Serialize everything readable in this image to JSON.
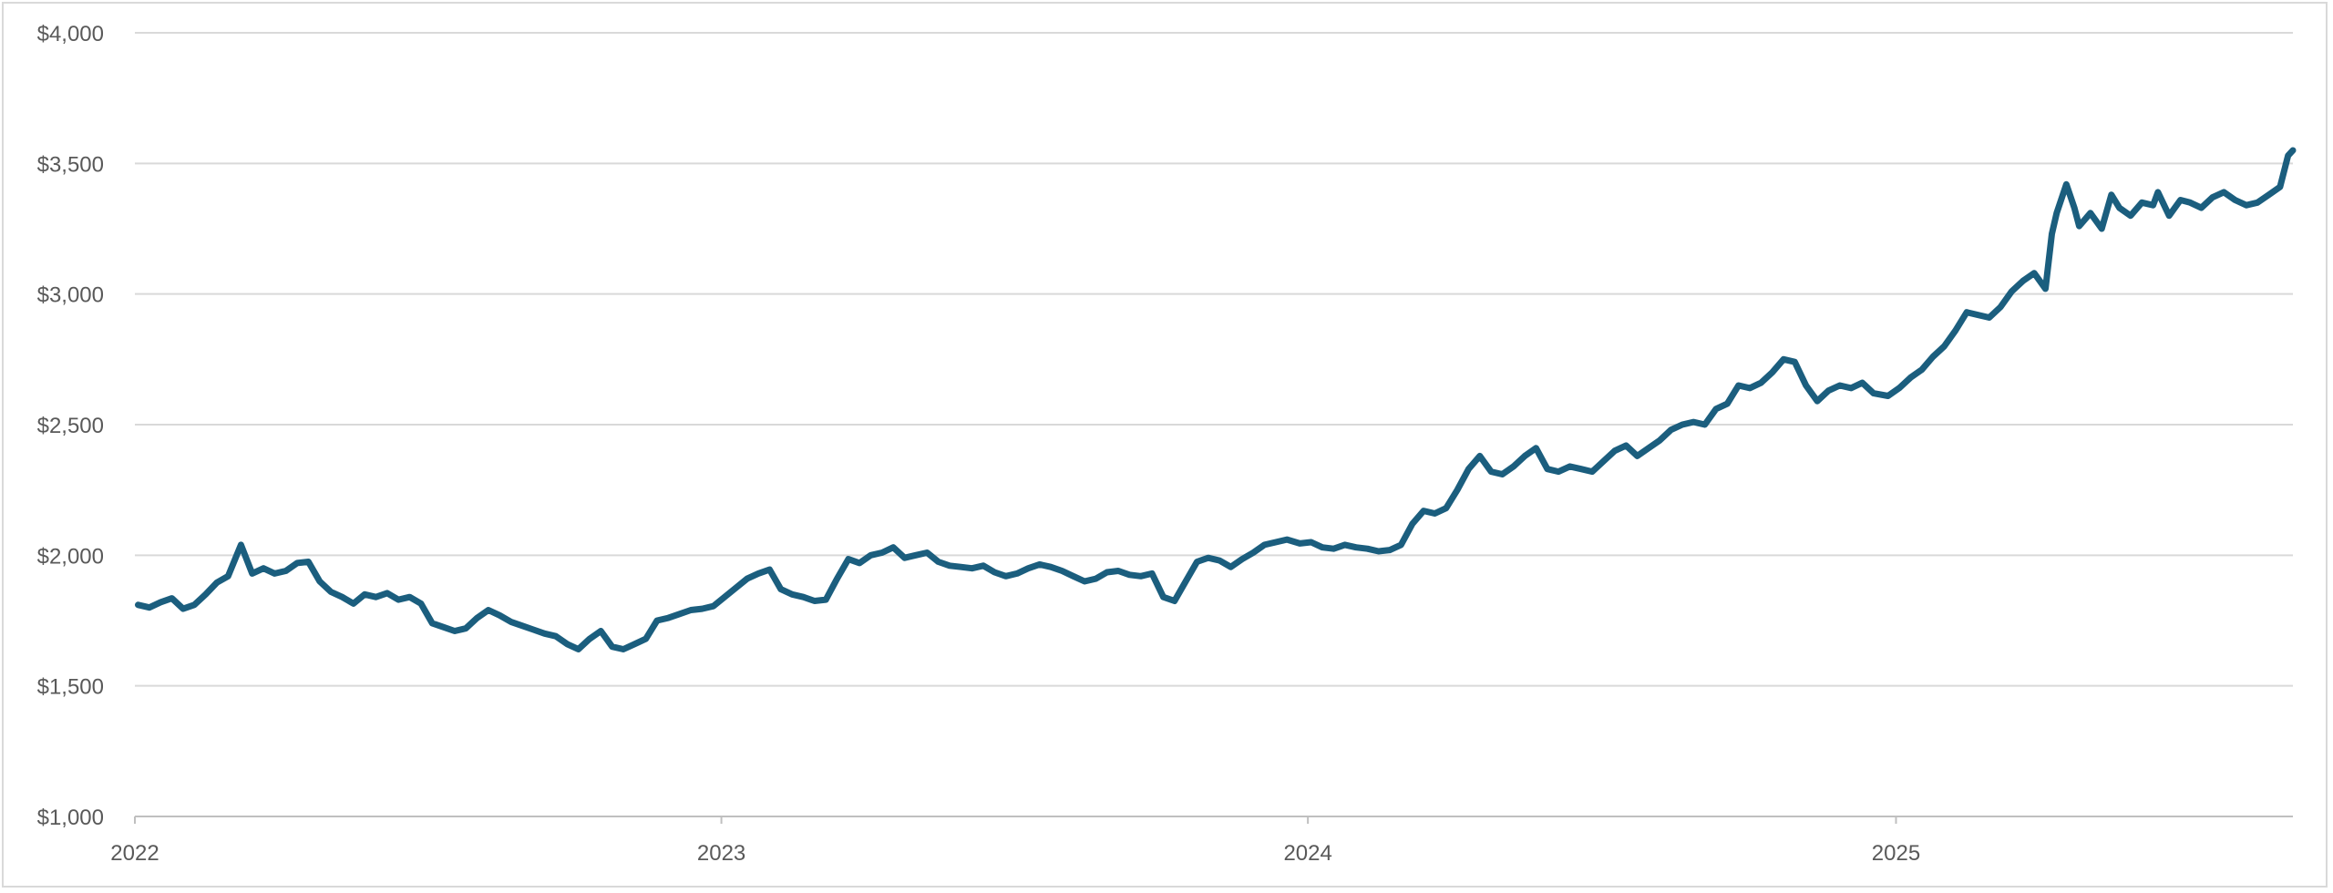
{
  "chart_data": {
    "type": "line",
    "title": "",
    "xlabel": "",
    "ylabel": "",
    "ylim": [
      1000,
      4000
    ],
    "xlim": [
      "2022-01-01",
      "2025-09-05"
    ],
    "grid": "horizontal",
    "legend": "none",
    "y_ticks": [
      1000,
      1500,
      2000,
      2500,
      3000,
      3500,
      4000
    ],
    "y_tick_labels": [
      "$1,000",
      "$1,500",
      "$2,000",
      "$2,500",
      "$3,000",
      "$3,500",
      "$4,000"
    ],
    "x_ticks": [
      "2022-01-01",
      "2023-01-01",
      "2024-01-01",
      "2025-01-01"
    ],
    "x_tick_labels": [
      "2022",
      "2023",
      "2024",
      "2025"
    ],
    "colors": {
      "series": "#1b5e7e",
      "grid": "#d9d9d9",
      "text": "#595959"
    },
    "series": [
      {
        "x": [
          "2022-01-03",
          "2022-01-10",
          "2022-01-17",
          "2022-01-24",
          "2022-01-31",
          "2022-02-07",
          "2022-02-14",
          "2022-02-21",
          "2022-02-28",
          "2022-03-08",
          "2022-03-15",
          "2022-03-22",
          "2022-03-29",
          "2022-04-05",
          "2022-04-12",
          "2022-04-19",
          "2022-04-26",
          "2022-05-03",
          "2022-05-10",
          "2022-05-17",
          "2022-05-24",
          "2022-05-31",
          "2022-06-07",
          "2022-06-14",
          "2022-06-21",
          "2022-06-28",
          "2022-07-05",
          "2022-07-12",
          "2022-07-19",
          "2022-07-26",
          "2022-08-02",
          "2022-08-09",
          "2022-08-16",
          "2022-08-23",
          "2022-08-30",
          "2022-09-06",
          "2022-09-13",
          "2022-09-20",
          "2022-09-27",
          "2022-10-04",
          "2022-10-11",
          "2022-10-18",
          "2022-10-25",
          "2022-11-01",
          "2022-11-08",
          "2022-11-15",
          "2022-11-22",
          "2022-11-29",
          "2022-12-06",
          "2022-12-13",
          "2022-12-20",
          "2022-12-27",
          "2023-01-03",
          "2023-01-10",
          "2023-01-17",
          "2023-01-24",
          "2023-01-31",
          "2023-02-07",
          "2023-02-14",
          "2023-02-21",
          "2023-02-28",
          "2023-03-07",
          "2023-03-14",
          "2023-03-21",
          "2023-03-28",
          "2023-04-04",
          "2023-04-11",
          "2023-04-18",
          "2023-04-25",
          "2023-05-02",
          "2023-05-09",
          "2023-05-16",
          "2023-05-23",
          "2023-05-30",
          "2023-06-06",
          "2023-06-13",
          "2023-06-20",
          "2023-06-27",
          "2023-07-04",
          "2023-07-11",
          "2023-07-18",
          "2023-07-25",
          "2023-08-01",
          "2023-08-08",
          "2023-08-15",
          "2023-08-22",
          "2023-08-29",
          "2023-09-05",
          "2023-09-12",
          "2023-09-19",
          "2023-09-26",
          "2023-10-03",
          "2023-10-10",
          "2023-10-17",
          "2023-10-24",
          "2023-10-31",
          "2023-11-07",
          "2023-11-14",
          "2023-11-21",
          "2023-11-28",
          "2023-12-05",
          "2023-12-12",
          "2023-12-19",
          "2023-12-27",
          "2024-01-03",
          "2024-01-10",
          "2024-01-17",
          "2024-01-24",
          "2024-01-31",
          "2024-02-07",
          "2024-02-14",
          "2024-02-21",
          "2024-02-28",
          "2024-03-06",
          "2024-03-13",
          "2024-03-20",
          "2024-03-27",
          "2024-04-03",
          "2024-04-10",
          "2024-04-17",
          "2024-04-24",
          "2024-05-01",
          "2024-05-08",
          "2024-05-15",
          "2024-05-22",
          "2024-05-29",
          "2024-06-05",
          "2024-06-12",
          "2024-06-19",
          "2024-06-26",
          "2024-07-03",
          "2024-07-10",
          "2024-07-17",
          "2024-07-24",
          "2024-07-31",
          "2024-08-07",
          "2024-08-14",
          "2024-08-21",
          "2024-08-28",
          "2024-09-04",
          "2024-09-11",
          "2024-09-18",
          "2024-09-25",
          "2024-10-02",
          "2024-10-09",
          "2024-10-16",
          "2024-10-23",
          "2024-10-30",
          "2024-11-06",
          "2024-11-13",
          "2024-11-20",
          "2024-11-27",
          "2024-12-04",
          "2024-12-11",
          "2024-12-18",
          "2024-12-27",
          "2025-01-03",
          "2025-01-10",
          "2025-01-17",
          "2025-01-24",
          "2025-01-31",
          "2025-02-07",
          "2025-02-14",
          "2025-02-21",
          "2025-02-28",
          "2025-03-07",
          "2025-03-14",
          "2025-03-21",
          "2025-03-28",
          "2025-04-04",
          "2025-04-08",
          "2025-04-11",
          "2025-04-17",
          "2025-04-22",
          "2025-04-25",
          "2025-05-02",
          "2025-05-09",
          "2025-05-15",
          "2025-05-20",
          "2025-05-27",
          "2025-06-03",
          "2025-06-10",
          "2025-06-13",
          "2025-06-20",
          "2025-06-27",
          "2025-07-03",
          "2025-07-10",
          "2025-07-17",
          "2025-07-24",
          "2025-07-31",
          "2025-08-07",
          "2025-08-14",
          "2025-08-21",
          "2025-08-28",
          "2025-09-02",
          "2025-09-05"
        ],
        "values": [
          1810,
          1800,
          1820,
          1835,
          1795,
          1810,
          1850,
          1895,
          1920,
          2040,
          1930,
          1950,
          1930,
          1940,
          1970,
          1975,
          1900,
          1860,
          1840,
          1815,
          1850,
          1840,
          1855,
          1830,
          1840,
          1815,
          1740,
          1725,
          1710,
          1720,
          1760,
          1790,
          1770,
          1745,
          1730,
          1715,
          1700,
          1690,
          1660,
          1640,
          1680,
          1710,
          1650,
          1640,
          1660,
          1680,
          1750,
          1760,
          1775,
          1790,
          1795,
          1805,
          1840,
          1875,
          1910,
          1930,
          1945,
          1870,
          1850,
          1840,
          1825,
          1830,
          1910,
          1985,
          1970,
          2000,
          2010,
          2030,
          1990,
          2000,
          2010,
          1975,
          1960,
          1955,
          1950,
          1960,
          1935,
          1920,
          1930,
          1950,
          1965,
          1955,
          1940,
          1920,
          1900,
          1910,
          1935,
          1940,
          1925,
          1920,
          1930,
          1840,
          1825,
          1900,
          1975,
          1990,
          1980,
          1955,
          1985,
          2010,
          2040,
          2050,
          2060,
          2045,
          2050,
          2030,
          2025,
          2040,
          2030,
          2025,
          2015,
          2020,
          2040,
          2120,
          2170,
          2160,
          2180,
          2250,
          2330,
          2380,
          2320,
          2310,
          2340,
          2380,
          2410,
          2330,
          2320,
          2340,
          2330,
          2320,
          2360,
          2400,
          2420,
          2380,
          2410,
          2440,
          2480,
          2500,
          2510,
          2500,
          2560,
          2580,
          2650,
          2640,
          2660,
          2700,
          2750,
          2740,
          2650,
          2590,
          2630,
          2650,
          2640,
          2660,
          2620,
          2610,
          2640,
          2680,
          2710,
          2760,
          2800,
          2860,
          2930,
          2920,
          2910,
          2950,
          3010,
          3050,
          3080,
          3020,
          3230,
          3310,
          3420,
          3330,
          3260,
          3310,
          3250,
          3380,
          3330,
          3300,
          3350,
          3340,
          3390,
          3300,
          3360,
          3350,
          3330,
          3370,
          3390,
          3360,
          3340,
          3350,
          3380,
          3410,
          3530,
          3550
        ]
      }
    ]
  }
}
